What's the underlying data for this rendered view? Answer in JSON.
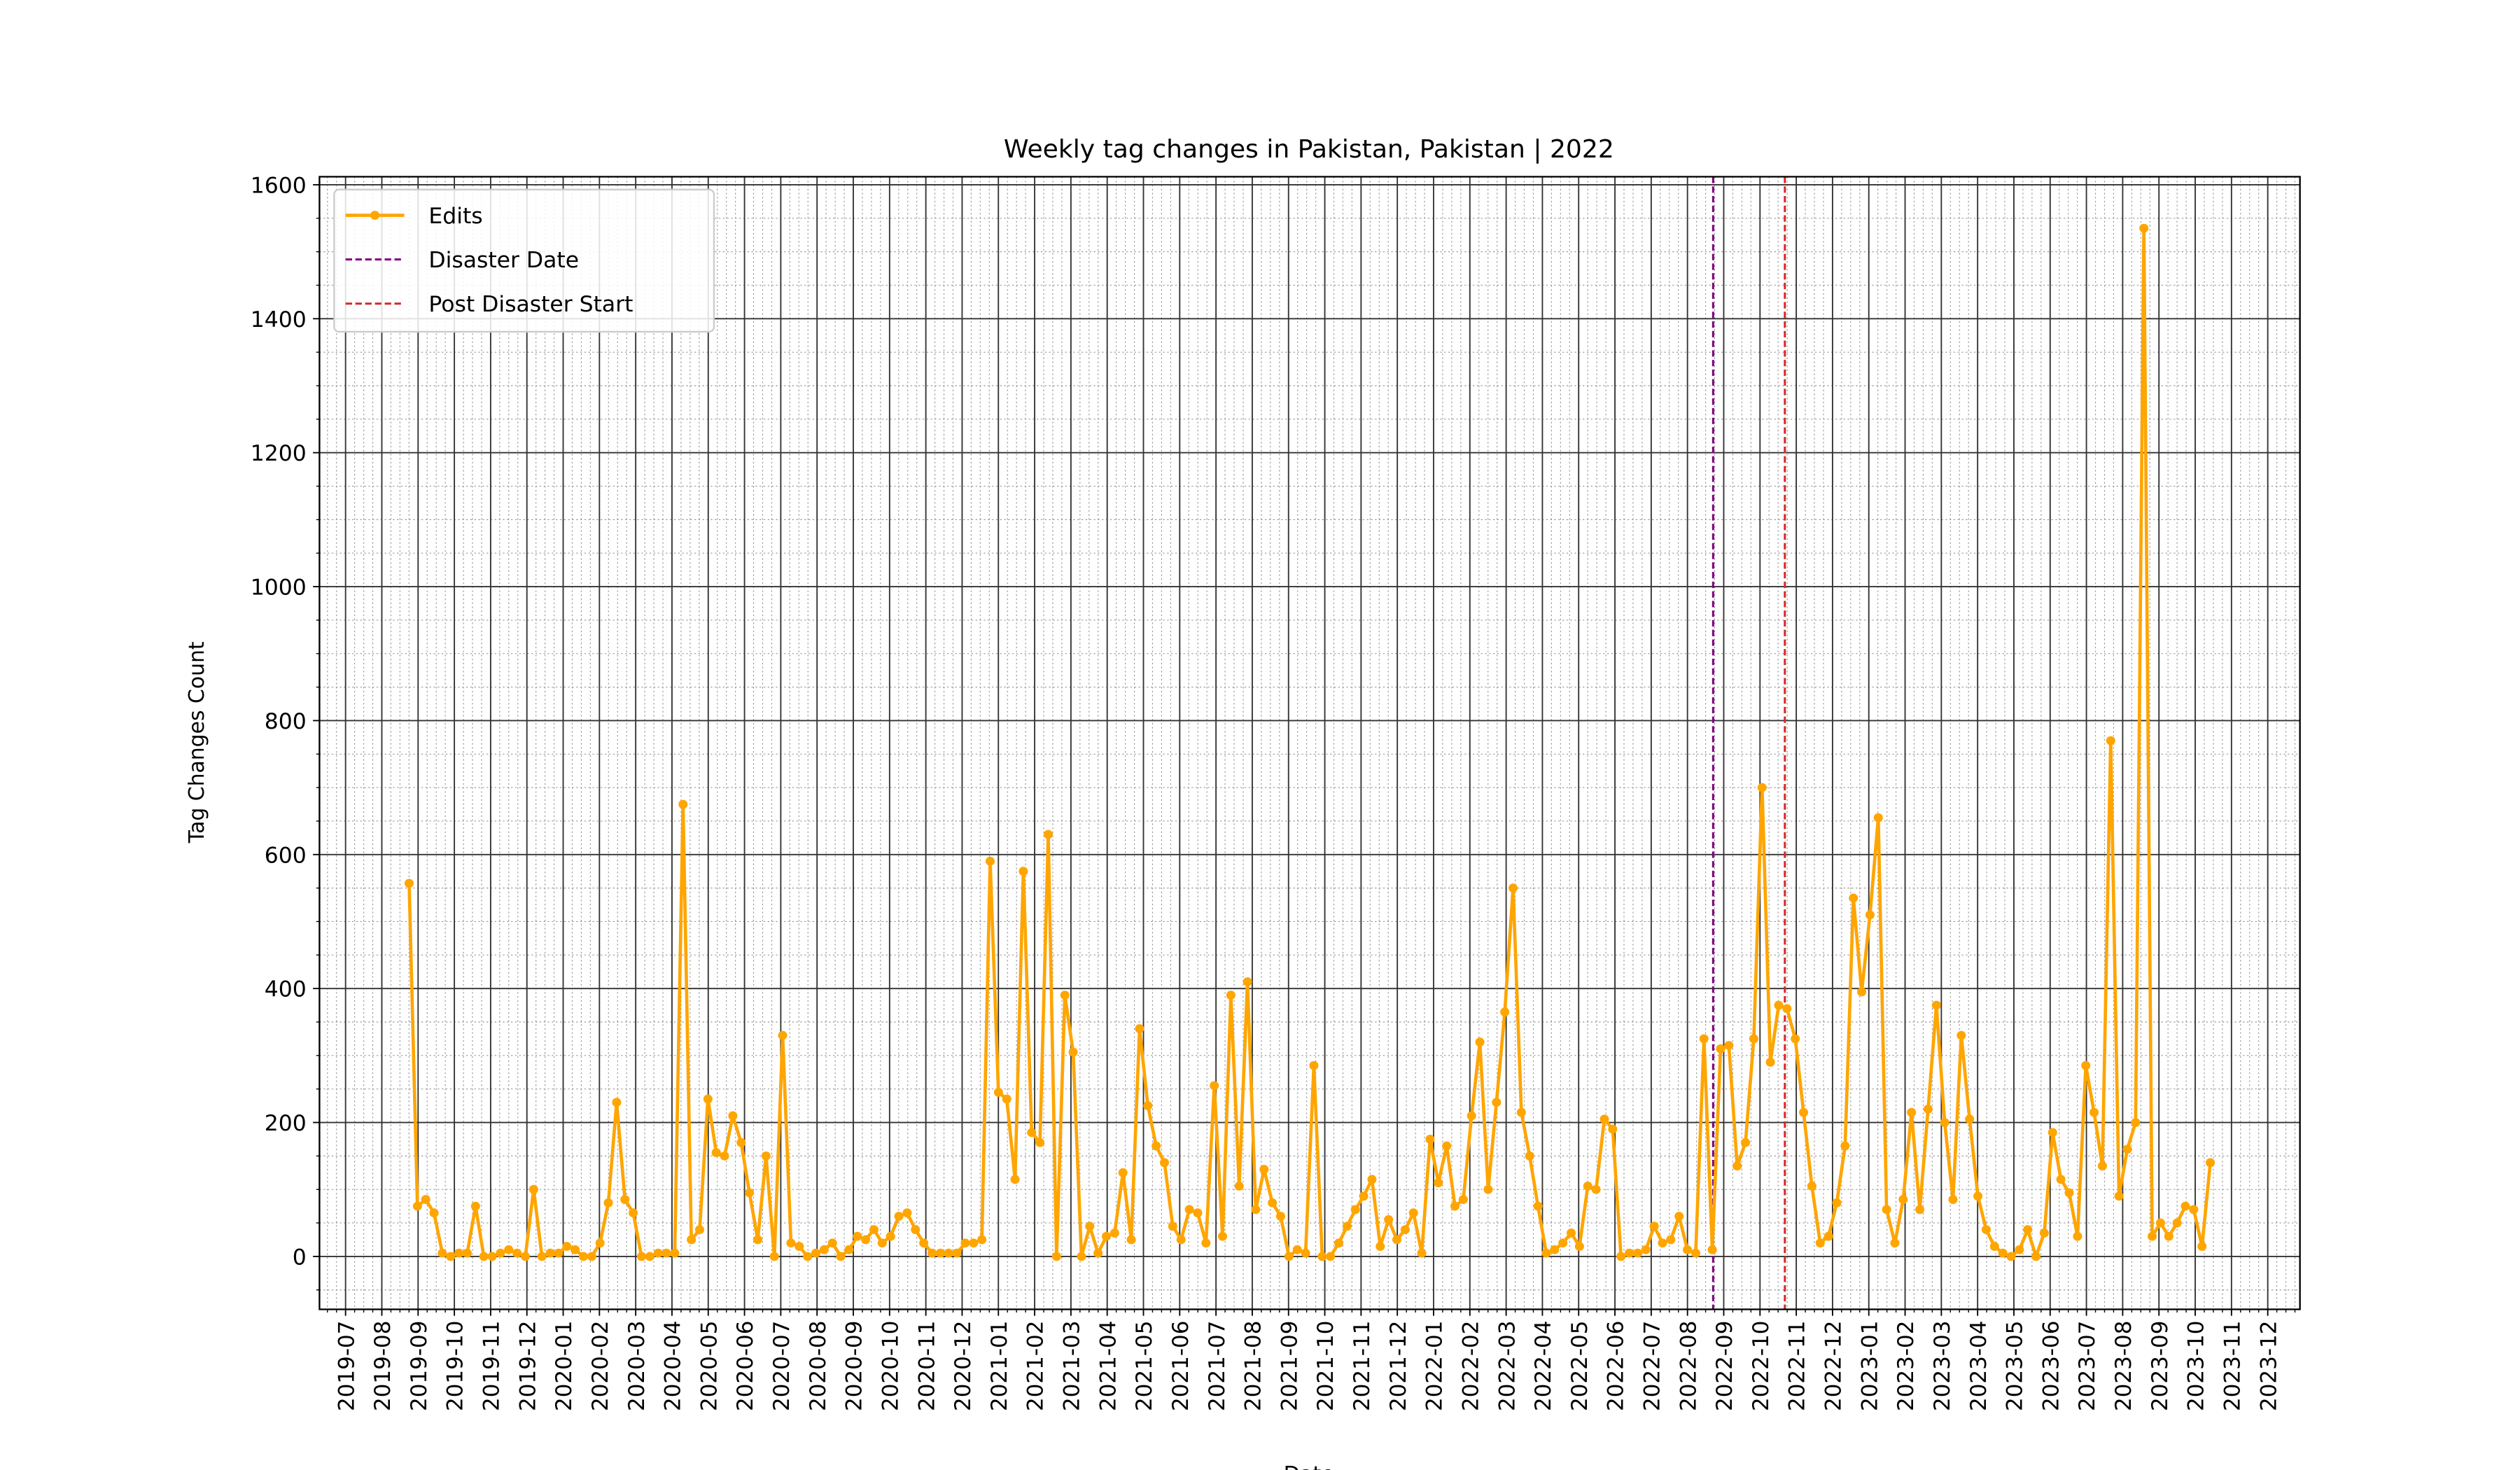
{
  "chart_data": {
    "type": "line",
    "title": "Weekly tag changes in Pakistan, Pakistan | 2022",
    "xlabel": "Date",
    "ylabel": "Tag Changes Count",
    "ylim": [
      -79,
      1612
    ],
    "yticks": [
      0,
      200,
      400,
      600,
      800,
      1000,
      1200,
      1400,
      1600
    ],
    "xticks": [
      "2019-07",
      "2019-08",
      "2019-09",
      "2019-10",
      "2019-11",
      "2019-12",
      "2020-01",
      "2020-02",
      "2020-03",
      "2020-04",
      "2020-05",
      "2020-06",
      "2020-07",
      "2020-08",
      "2020-09",
      "2020-10",
      "2020-11",
      "2020-12",
      "2021-01",
      "2021-02",
      "2021-03",
      "2021-04",
      "2021-05",
      "2021-06",
      "2021-07",
      "2021-08",
      "2021-09",
      "2021-10",
      "2021-11",
      "2021-12",
      "2022-01",
      "2022-02",
      "2022-03",
      "2022-04",
      "2022-05",
      "2022-06",
      "2022-07",
      "2022-08",
      "2022-09",
      "2022-10",
      "2022-11",
      "2022-12",
      "2023-01",
      "2023-02",
      "2023-03",
      "2023-04",
      "2023-05",
      "2023-06",
      "2023-07",
      "2023-08",
      "2023-09",
      "2023-10",
      "2023-11",
      "2023-12"
    ],
    "grid": true,
    "legend": "upper left",
    "series": [
      {
        "name": "Edits",
        "color": "orange",
        "values": [
          557,
          75,
          85,
          65,
          5,
          0,
          5,
          5,
          75,
          0,
          0,
          5,
          10,
          5,
          0,
          100,
          0,
          5,
          5,
          15,
          10,
          0,
          0,
          20,
          80,
          230,
          85,
          65,
          0,
          0,
          5,
          5,
          5,
          675,
          25,
          40,
          235,
          155,
          150,
          210,
          170,
          95,
          25,
          150,
          0,
          330,
          20,
          15,
          0,
          5,
          10,
          20,
          0,
          10,
          30,
          25,
          40,
          20,
          30,
          60,
          65,
          40,
          20,
          5,
          5,
          5,
          5,
          20,
          20,
          25,
          590,
          245,
          235,
          115,
          575,
          185,
          170,
          630,
          0,
          390,
          305,
          0,
          45,
          5,
          30,
          35,
          125,
          25,
          340,
          225,
          165,
          140,
          45,
          25,
          70,
          65,
          20,
          255,
          30,
          390,
          105,
          410,
          70,
          130,
          80,
          60,
          0,
          10,
          5,
          285,
          0,
          0,
          20,
          45,
          70,
          90,
          115,
          15,
          55,
          25,
          40,
          65,
          5,
          175,
          110,
          165,
          75,
          85,
          210,
          320,
          100,
          230,
          365,
          550,
          215,
          150,
          75,
          5,
          10,
          20,
          35,
          15,
          105,
          100,
          205,
          190,
          0,
          5,
          5,
          10,
          45,
          20,
          25,
          60,
          10,
          5,
          325,
          10,
          310,
          315,
          135,
          170,
          325,
          700,
          290,
          375,
          370,
          325,
          215,
          105,
          20,
          30,
          80,
          165,
          535,
          395,
          510,
          655,
          70,
          20,
          85,
          215,
          70,
          220,
          375,
          200,
          85,
          330,
          205,
          90,
          40,
          15,
          5,
          0,
          10,
          40,
          0,
          35,
          185,
          115,
          95,
          30,
          285,
          215,
          135,
          770,
          90,
          160,
          200,
          1535,
          30,
          50,
          30,
          50,
          75,
          70,
          15,
          140
        ]
      }
    ],
    "vlines": [
      {
        "name": "Disaster Date",
        "color": "purple"
      },
      {
        "name": "Post Disaster Start",
        "color": "#d62728"
      }
    ]
  }
}
